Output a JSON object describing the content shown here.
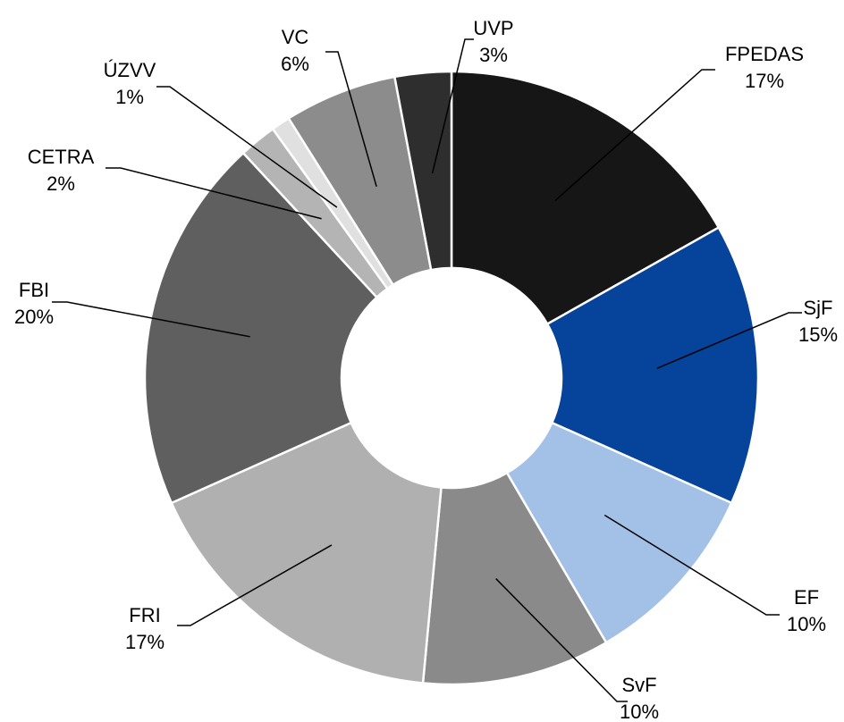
{
  "chart_data": {
    "type": "donut",
    "categories": [
      "FPEDAS",
      "SjF",
      "EF",
      "SvF",
      "FRI",
      "FBI",
      "CETRA",
      "ÚZVV",
      "VC",
      "UVP"
    ],
    "values": [
      17,
      15,
      10,
      10,
      17,
      20,
      2,
      1,
      6,
      3
    ],
    "value_labels": [
      "17%",
      "15%",
      "10%",
      "10%",
      "17%",
      "20%",
      "2%",
      "1%",
      "6%",
      "3%"
    ],
    "colors": [
      "#161616",
      "#05449a",
      "#a3c1e6",
      "#8a8a8a",
      "#b0b0b0",
      "#5f5f5f",
      "#b4b4b4",
      "#e0e0e0",
      "#8c8c8c",
      "#2e2e2e"
    ]
  }
}
